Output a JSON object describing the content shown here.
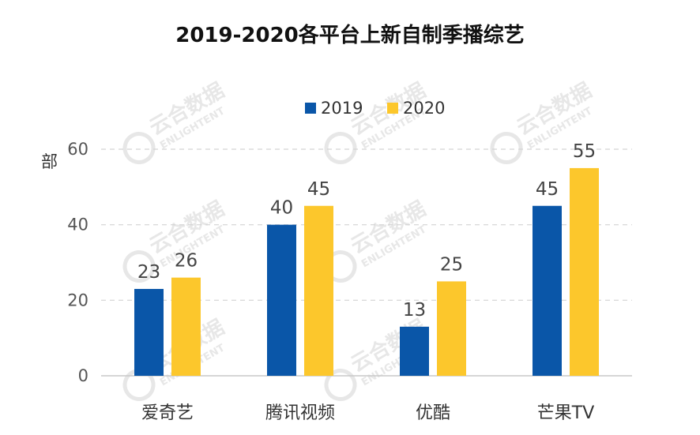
{
  "chart_data": {
    "type": "bar",
    "title": "2019-2020各平台上新自制季播综艺",
    "ylabel": "部",
    "xlabel": "",
    "categories": [
      "爱奇艺",
      "腾讯视频",
      "优酷",
      "芒果TV"
    ],
    "series": [
      {
        "name": "2019",
        "color": "#0a56a8",
        "values": [
          23,
          40,
          13,
          45
        ]
      },
      {
        "name": "2020",
        "color": "#fcc72c",
        "values": [
          26,
          45,
          25,
          55
        ]
      }
    ],
    "ylim": [
      0,
      60
    ],
    "yticks": [
      0,
      20,
      40,
      60
    ],
    "grid": true,
    "grid_style": "dashed",
    "legend_position": "top"
  },
  "watermark": {
    "text_cn": "云合数据",
    "text_en": "ENLIGHTENT"
  }
}
